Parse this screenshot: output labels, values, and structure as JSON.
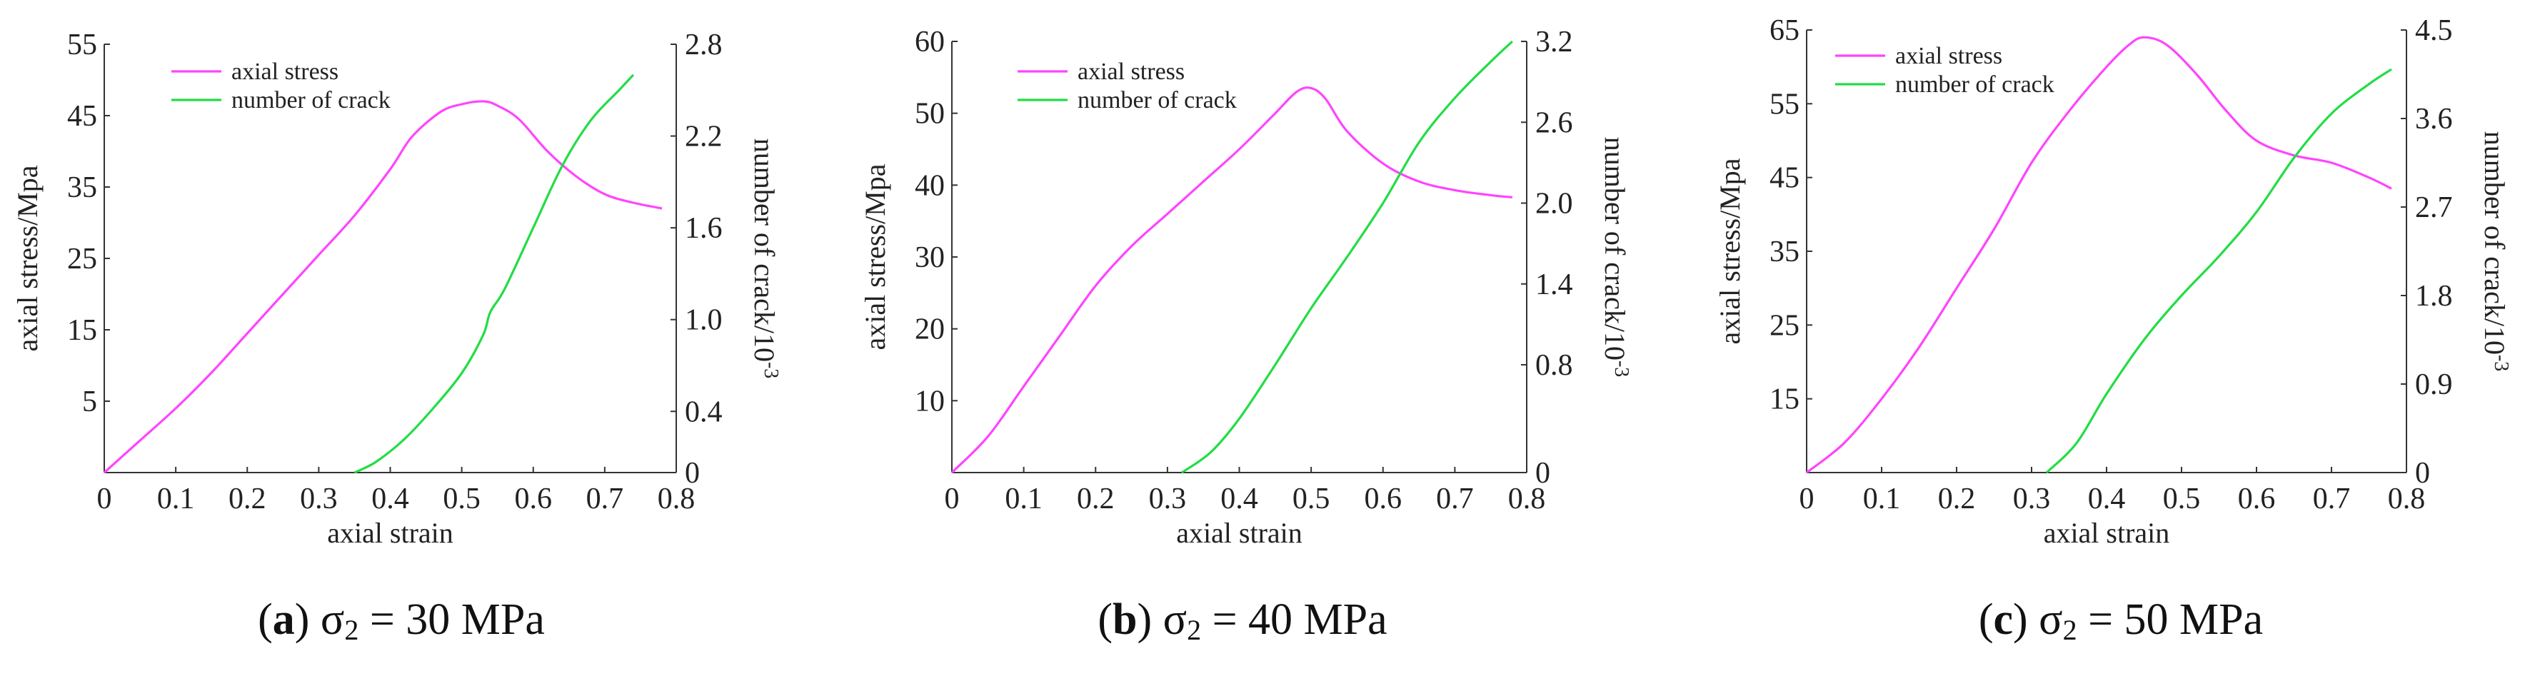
{
  "colors": {
    "stress": "#ff44ff",
    "crack": "#22dd44",
    "axis": "#333333",
    "text": "#222222"
  },
  "chart_data": [
    {
      "type": "line",
      "panel": "a",
      "caption": {
        "letter": "a",
        "symbol": "σ",
        "subscript": "2",
        "value": "= 30 MPa"
      },
      "xlabel": "axial strain",
      "ylabel": "axial stress/Mpa",
      "y2label": "number of crack/10",
      "y2label_exp": "-3",
      "xlim": [
        0,
        0.8
      ],
      "ylim": [
        -5,
        55
      ],
      "y2lim": [
        0,
        2.8
      ],
      "xticks": [
        0,
        0.1,
        0.2,
        0.3,
        0.4,
        0.5,
        0.6,
        0.7,
        0.8
      ],
      "xtick_labels": [
        "0",
        "0.1",
        "0.2",
        "0.3",
        "0.4",
        "0.5",
        "0.6",
        "0.7",
        "0.8"
      ],
      "yticks": [
        5,
        15,
        25,
        35,
        45,
        55
      ],
      "ytick_labels": [
        "5",
        "15",
        "25",
        "35",
        "45",
        "55"
      ],
      "y2ticks": [
        0,
        0.4,
        1.0,
        1.6,
        2.2,
        2.8
      ],
      "y2tick_labels": [
        "0",
        "0.4",
        "1.0",
        "1.6",
        "2.2",
        "2.8"
      ],
      "legend": {
        "position": "top-left",
        "entries": [
          "axial stress",
          "number of crack"
        ]
      },
      "series": [
        {
          "name": "axial stress",
          "axis": "left",
          "x": [
            0,
            0.05,
            0.1,
            0.15,
            0.2,
            0.25,
            0.3,
            0.35,
            0.4,
            0.43,
            0.47,
            0.5,
            0.53,
            0.55,
            0.58,
            0.62,
            0.66,
            0.7,
            0.74,
            0.78
          ],
          "y": [
            -5,
            -0.5,
            4,
            9,
            14.5,
            20,
            25.5,
            31,
            37.5,
            42,
            45.5,
            46.6,
            47,
            46.4,
            44.5,
            40,
            36.5,
            34,
            32.8,
            32
          ]
        },
        {
          "name": "number of crack",
          "axis": "right",
          "x": [
            0.35,
            0.38,
            0.42,
            0.46,
            0.5,
            0.53,
            0.54,
            0.56,
            0.6,
            0.64,
            0.68,
            0.72,
            0.74
          ],
          "y": [
            0,
            0.07,
            0.22,
            0.42,
            0.65,
            0.9,
            1.05,
            1.2,
            1.6,
            2.0,
            2.3,
            2.5,
            2.6
          ]
        }
      ]
    },
    {
      "type": "line",
      "panel": "b",
      "caption": {
        "letter": "b",
        "symbol": "σ",
        "subscript": "2",
        "value": "= 40 MPa"
      },
      "xlabel": "axial strain",
      "ylabel": "axial stress/Mpa",
      "y2label": "number of crack/10",
      "y2label_exp": "-3",
      "xlim": [
        0,
        0.8
      ],
      "ylim": [
        0,
        60
      ],
      "y2lim": [
        0,
        3.2
      ],
      "xticks": [
        0,
        0.1,
        0.2,
        0.3,
        0.4,
        0.5,
        0.6,
        0.7,
        0.8
      ],
      "xtick_labels": [
        "0",
        "0.1",
        "0.2",
        "0.3",
        "0.4",
        "0.5",
        "0.6",
        "0.7",
        "0.8"
      ],
      "yticks": [
        10,
        20,
        30,
        40,
        50,
        60
      ],
      "ytick_labels": [
        "10",
        "20",
        "30",
        "40",
        "50",
        "60"
      ],
      "y2ticks": [
        0,
        0.8,
        1.4,
        2.0,
        2.6,
        3.2
      ],
      "y2tick_labels": [
        "0",
        "0.8",
        "1.4",
        "2.0",
        "2.6",
        "3.2"
      ],
      "legend": {
        "position": "top-left",
        "entries": [
          "axial stress",
          "number of crack"
        ]
      },
      "series": [
        {
          "name": "axial stress",
          "axis": "left",
          "x": [
            0,
            0.05,
            0.1,
            0.15,
            0.2,
            0.25,
            0.3,
            0.35,
            0.4,
            0.45,
            0.48,
            0.5,
            0.52,
            0.55,
            0.6,
            0.65,
            0.7,
            0.75,
            0.78
          ],
          "y": [
            0,
            5,
            12,
            19,
            26,
            31.5,
            36,
            40.5,
            45,
            50,
            53,
            53.5,
            52,
            47.5,
            43,
            40.5,
            39.3,
            38.6,
            38.3
          ]
        },
        {
          "name": "number of crack",
          "axis": "right",
          "x": [
            0.32,
            0.36,
            0.4,
            0.45,
            0.5,
            0.55,
            0.6,
            0.65,
            0.7,
            0.75,
            0.78
          ],
          "y": [
            0,
            0.15,
            0.4,
            0.8,
            1.22,
            1.6,
            2.0,
            2.45,
            2.78,
            3.05,
            3.2
          ]
        }
      ]
    },
    {
      "type": "line",
      "panel": "c",
      "caption": {
        "letter": "c",
        "symbol": "σ",
        "subscript": "2",
        "value": "= 50 MPa"
      },
      "xlabel": "axial strain",
      "ylabel": "axial stress/Mpa",
      "y2label": "number of crack/10",
      "y2label_exp": "-3",
      "xlim": [
        0,
        0.8
      ],
      "ylim": [
        5,
        65
      ],
      "y2lim": [
        0,
        4.5
      ],
      "xticks": [
        0,
        0.1,
        0.2,
        0.3,
        0.4,
        0.5,
        0.6,
        0.7,
        0.8
      ],
      "xtick_labels": [
        "0",
        "0.1",
        "0.2",
        "0.3",
        "0.4",
        "0.5",
        "0.6",
        "0.7",
        "0.8"
      ],
      "yticks": [
        15,
        25,
        35,
        45,
        55,
        65
      ],
      "ytick_labels": [
        "15",
        "25",
        "35",
        "45",
        "55",
        "65"
      ],
      "y2ticks": [
        0,
        0.9,
        1.8,
        2.7,
        3.6,
        4.5
      ],
      "y2tick_labels": [
        "0",
        "0.9",
        "1.8",
        "2.7",
        "3.6",
        "4.5"
      ],
      "legend": {
        "position": "top-left",
        "entries": [
          "axial stress",
          "number of crack"
        ]
      },
      "series": [
        {
          "name": "axial stress",
          "axis": "left",
          "x": [
            0,
            0.05,
            0.1,
            0.15,
            0.2,
            0.25,
            0.3,
            0.35,
            0.4,
            0.43,
            0.45,
            0.48,
            0.52,
            0.56,
            0.6,
            0.65,
            0.7,
            0.75,
            0.78
          ],
          "y": [
            5,
            9,
            15,
            22,
            30,
            38,
            47,
            54,
            60,
            63,
            64,
            63,
            59,
            54,
            50,
            48,
            47,
            45,
            43.5
          ]
        },
        {
          "name": "number of crack",
          "axis": "right",
          "x": [
            0.32,
            0.36,
            0.4,
            0.45,
            0.5,
            0.55,
            0.6,
            0.65,
            0.7,
            0.75,
            0.78
          ],
          "y": [
            0,
            0.3,
            0.8,
            1.35,
            1.8,
            2.2,
            2.65,
            3.2,
            3.65,
            3.95,
            4.1
          ]
        }
      ]
    }
  ]
}
